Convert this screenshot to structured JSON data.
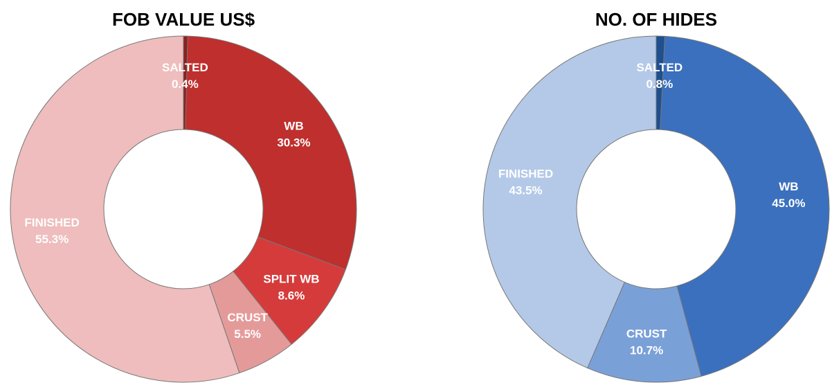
{
  "chart_data": [
    {
      "type": "pie",
      "title": "FOB VALUE US$",
      "categories": [
        "SALTED",
        "WB",
        "SPLIT WB",
        "CRUST",
        "FINISHED"
      ],
      "values": [
        0.4,
        30.3,
        8.6,
        5.5,
        55.3
      ],
      "value_labels": [
        "0.4%",
        "30.3%",
        "8.6%",
        "5.5%",
        "55.3%"
      ],
      "colors": [
        "#8e1f1f",
        "#bf2f2d",
        "#d63b3b",
        "#e59a9a",
        "#efbdbd"
      ]
    },
    {
      "type": "pie",
      "title": "NO. OF HIDES",
      "categories": [
        "SALTED",
        "WB",
        "CRUST",
        "FINISHED"
      ],
      "values": [
        0.8,
        45.0,
        10.7,
        43.5
      ],
      "value_labels": [
        "0.8%",
        "45.0%",
        "10.7%",
        "43.5%"
      ],
      "colors": [
        "#1f4f8f",
        "#3a70be",
        "#7aa0d8",
        "#b4c9e8"
      ]
    }
  ]
}
